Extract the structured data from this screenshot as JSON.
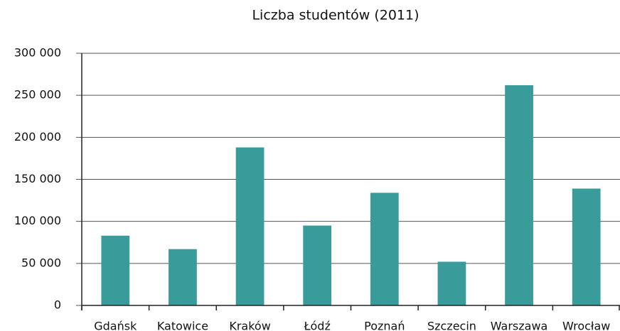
{
  "chart_data": {
    "type": "bar",
    "title": "Liczba studentów (2011)",
    "categories": [
      "Gdańsk",
      "Katowice",
      "Kraków",
      "Łódź",
      "Poznań",
      "Szczecin",
      "Warszawa",
      "Wrocław"
    ],
    "values": [
      83000,
      67000,
      188000,
      95000,
      134000,
      52000,
      262000,
      139000
    ],
    "color": "#3a9b9b",
    "ylim": [
      0,
      300000
    ],
    "yticks": [
      0,
      {
        "value": 50000,
        "label": "50 000"
      },
      {
        "value": 100000,
        "label": "100 000"
      },
      {
        "value": 150000,
        "label": "150 000"
      },
      {
        "value": 200000,
        "label": "200 000"
      },
      {
        "value": 250000,
        "label": "250 000"
      },
      {
        "value": 300000,
        "label": "300 000"
      }
    ],
    "grid": true
  }
}
